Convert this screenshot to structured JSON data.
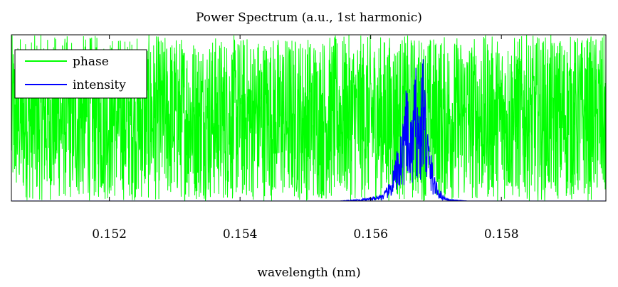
{
  "chart_data": {
    "type": "line",
    "title": "Power Spectrum (a.u., 1st harmonic)",
    "xlabel": "wavelength (nm)",
    "ylabel": "",
    "xlim": [
      0.1505,
      0.1596
    ],
    "ylim": [
      0,
      1
    ],
    "xticks": [
      {
        "value": 0.152,
        "label": "0.152"
      },
      {
        "value": 0.154,
        "label": "0.154"
      },
      {
        "value": 0.156,
        "label": "0.156"
      },
      {
        "value": 0.158,
        "label": "0.158"
      }
    ],
    "legend_position": "top-left",
    "grid": false,
    "series": [
      {
        "name": "phase",
        "color": "#00ff00",
        "style": "dense noise spanning full y-range",
        "x_range": [
          0.1505,
          0.1596
        ],
        "y_range": [
          0.0,
          1.0
        ]
      },
      {
        "name": "intensity",
        "color": "#0000ff",
        "x": [
          0.1505,
          0.1555,
          0.1558,
          0.156,
          0.1562,
          0.1563,
          0.1564,
          0.1565,
          0.15655,
          0.1566,
          0.15665,
          0.1567,
          0.15675,
          0.1568,
          0.15685,
          0.1569,
          0.157,
          0.1571,
          0.1572,
          0.1575,
          0.1596
        ],
        "y": [
          0.0,
          0.0,
          0.01,
          0.02,
          0.05,
          0.12,
          0.3,
          0.55,
          0.7,
          0.45,
          0.65,
          0.88,
          0.55,
          1.0,
          0.6,
          0.35,
          0.12,
          0.04,
          0.01,
          0.0,
          0.0
        ]
      }
    ]
  }
}
